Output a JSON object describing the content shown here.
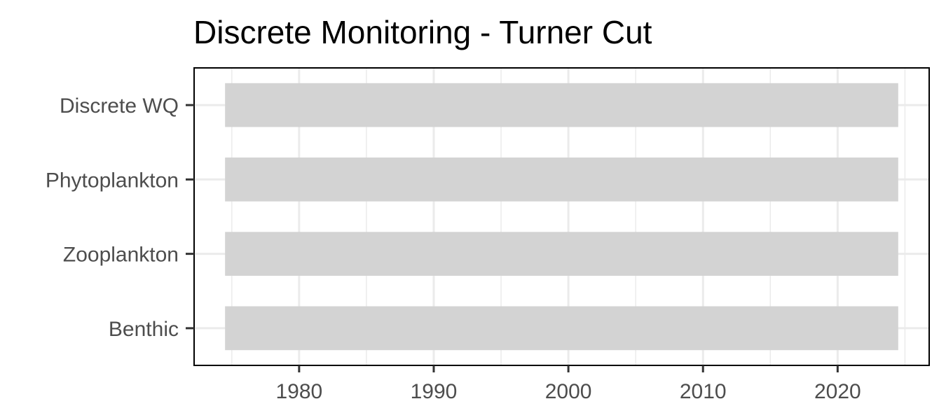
{
  "chart_data": {
    "type": "bar",
    "orientation": "horizontal",
    "title": "Discrete Monitoring - Turner Cut",
    "xlabel": "",
    "ylabel": "",
    "categories": [
      "Discrete WQ",
      "Phytoplankton",
      "Zooplankton",
      "Benthic"
    ],
    "series": [
      {
        "start": [
          1974.5,
          1974.5,
          1974.5,
          1974.5
        ],
        "end": [
          2024.5,
          2024.5,
          2024.5,
          2024.5
        ]
      }
    ],
    "xlim": [
      1972.2,
      2026.8
    ],
    "xticks": [
      1980,
      1990,
      2000,
      2010,
      2020
    ],
    "x_minor_ticks": [
      1975,
      1985,
      1995,
      2005,
      2015,
      2025
    ],
    "grid": true,
    "legend": "none",
    "bar_color": "#d3d3d3"
  }
}
